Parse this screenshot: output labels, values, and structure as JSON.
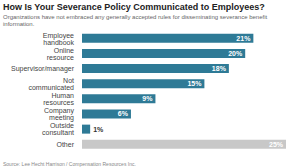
{
  "chart_data": {
    "type": "bar",
    "orientation": "horizontal",
    "title": "How Is Your Severance Policy Communicated to Employees?",
    "subtitle": "Organizations have not embraced any generally accepted rules for disseminating severance benefit information.",
    "source": "Source: Lee Hecht Harrison / Compensation Resources Inc.",
    "categories": [
      "Employee handbook",
      "Online resource",
      "Supervisor/manager",
      "Not communicated",
      "Human resources",
      "Company meeting",
      "Outside consultant",
      "Other"
    ],
    "values": [
      21,
      20,
      18,
      15,
      9,
      6,
      1,
      25
    ],
    "value_labels": [
      "21%",
      "20%",
      "18%",
      "15%",
      "9%",
      "6%",
      "1%",
      "25%"
    ],
    "data_labels": true,
    "colors": [
      "#2e7a96",
      "#2e7a96",
      "#2e7a96",
      "#2e7a96",
      "#2e7a96",
      "#2e7a96",
      "#2e7a96",
      "#c8c8c8"
    ],
    "xlim": [
      0,
      25
    ],
    "tick_labels": "y",
    "grid": false
  }
}
